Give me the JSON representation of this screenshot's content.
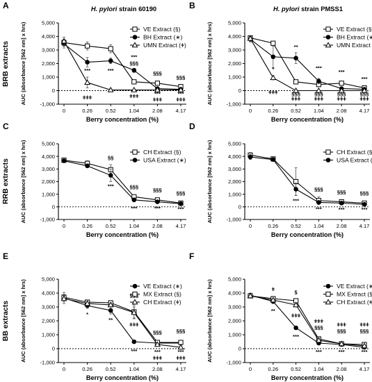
{
  "chart_data": [
    {
      "panel": "A",
      "type": "line",
      "row_label": "BRB extracts",
      "strain_label": "H. pylori",
      "strain_suffix": "strain 60190",
      "xlabel": "Berry concentration (%)",
      "ylabel": "AUC (absorbance [562 nm] x hrs)",
      "categories": [
        "0",
        "0.26",
        "0.52",
        "1.04",
        "2.08",
        "4.17"
      ],
      "ylim": [
        -1000,
        5000
      ],
      "yticks": [
        "-1,000",
        "0",
        "1,000",
        "2,000",
        "3,000",
        "4,000",
        "5,000"
      ],
      "legend_placement": "top-right",
      "series": [
        {
          "name": "VE Extract (§)",
          "marker": "square-open",
          "values": [
            3550,
            3300,
            3100,
            650,
            550,
            300
          ],
          "errors": [
            250,
            300,
            300,
            100,
            100,
            80
          ]
        },
        {
          "name": "BH Extract (∗)",
          "marker": "circle-filled",
          "values": [
            3450,
            2100,
            2200,
            1500,
            150,
            100
          ],
          "errors": [
            300,
            350,
            200,
            150,
            60,
            50
          ]
        },
        {
          "name": "UMN Extract (ǂ)",
          "marker": "triangle-open",
          "values": [
            3650,
            600,
            50,
            50,
            50,
            50
          ],
          "errors": [
            300,
            400,
            100,
            50,
            40,
            40
          ]
        }
      ],
      "annotations": [
        {
          "x": "0.26",
          "y": 1350,
          "text": "***"
        },
        {
          "x": "0.26",
          "y": -650,
          "text": "ǂǂǂ"
        },
        {
          "x": "0.52",
          "y": 1350,
          "text": "***"
        },
        {
          "x": "1.04",
          "y": 2350,
          "text": "***"
        },
        {
          "x": "1.04",
          "y": 1900,
          "text": "§§§"
        },
        {
          "x": "1.04",
          "y": -550,
          "text": "ǂǂǂ"
        },
        {
          "x": "2.08",
          "y": 1150,
          "text": "§§§"
        },
        {
          "x": "2.08",
          "y": -350,
          "text": "***"
        },
        {
          "x": "2.08",
          "y": -800,
          "text": "ǂǂǂ"
        },
        {
          "x": "4.17",
          "y": 850,
          "text": "§§§"
        },
        {
          "x": "4.17",
          "y": -350,
          "text": "***"
        },
        {
          "x": "4.17",
          "y": -800,
          "text": "ǂǂǂ"
        }
      ]
    },
    {
      "panel": "B",
      "type": "line",
      "row_label": "",
      "strain_label": "H. pylori",
      "strain_suffix": "strain PMSS1",
      "xlabel": "Berry concentration (%)",
      "ylabel": "AUC (absorbance [562 nm] x hrs)",
      "categories": [
        "0",
        "0.26",
        "0.52",
        "1.04",
        "2.08",
        "4.17"
      ],
      "ylim": [
        -1000,
        5000
      ],
      "yticks": [
        "-1,000",
        "0",
        "1,000",
        "2,000",
        "3,000",
        "4,000",
        "5,000"
      ],
      "legend_placement": "top-right",
      "series": [
        {
          "name": "VE Extract (§)",
          "marker": "square-open",
          "values": [
            3900,
            3500,
            650,
            450,
            550,
            200
          ],
          "errors": [
            150,
            150,
            150,
            150,
            100,
            80
          ]
        },
        {
          "name": "BH Extract (∗)",
          "marker": "circle-filled",
          "values": [
            3800,
            2500,
            2400,
            700,
            150,
            100
          ],
          "errors": [
            200,
            800,
            400,
            200,
            60,
            50
          ]
        },
        {
          "name": "UMN Extract (ǂ)",
          "marker": "triangle-open",
          "values": [
            3850,
            950,
            0,
            0,
            0,
            0
          ],
          "errors": [
            150,
            150,
            50,
            50,
            40,
            40
          ]
        }
      ],
      "annotations": [
        {
          "x": "0.26",
          "y": 1450,
          "text": "*"
        },
        {
          "x": "0.26",
          "y": -250,
          "text": "ǂǂǂ"
        },
        {
          "x": "0.52",
          "y": 3100,
          "text": "**"
        },
        {
          "x": "1.04",
          "y": 1550,
          "text": "***"
        },
        {
          "x": "0.52",
          "y": -350,
          "text": "§§§"
        },
        {
          "x": "0.52",
          "y": -750,
          "text": "ǂǂǂ"
        },
        {
          "x": "1.04",
          "y": -350,
          "text": "§§§"
        },
        {
          "x": "1.04",
          "y": -750,
          "text": "ǂǂǂ"
        },
        {
          "x": "2.08",
          "y": 1250,
          "text": "***"
        },
        {
          "x": "2.08",
          "y": -350,
          "text": "§§§"
        },
        {
          "x": "2.08",
          "y": -750,
          "text": "ǂǂǂ"
        },
        {
          "x": "4.17",
          "y": 750,
          "text": "***"
        },
        {
          "x": "4.17",
          "y": -350,
          "text": "§§§"
        },
        {
          "x": "4.17",
          "y": -750,
          "text": "ǂǂǂ"
        }
      ]
    },
    {
      "panel": "C",
      "type": "line",
      "row_label": "RRB extracts",
      "strain_label": "",
      "strain_suffix": "",
      "xlabel": "Berry concentration (%)",
      "ylabel": "AUC (absorbance [562 nm] x hrs)",
      "categories": [
        "0",
        "0.26",
        "0.52",
        "1.04",
        "2.08",
        "4.17"
      ],
      "ylim": [
        -1000,
        5000
      ],
      "yticks": [
        "-1,000",
        "0",
        "1,000",
        "2,000",
        "3,000",
        "4,000",
        "5,000"
      ],
      "legend_placement": "top-right",
      "series": [
        {
          "name": "CH Extract (§)",
          "marker": "square-open",
          "values": [
            3700,
            3450,
            2950,
            800,
            550,
            300
          ],
          "errors": [
            100,
            200,
            400,
            150,
            100,
            80
          ]
        },
        {
          "name": "USA Extract (∗)",
          "marker": "circle-filled",
          "values": [
            3650,
            3250,
            2500,
            550,
            400,
            250
          ],
          "errors": [
            100,
            150,
            500,
            150,
            80,
            60
          ]
        }
      ],
      "annotations": [
        {
          "x": "0.52",
          "y": 3750,
          "text": "§§"
        },
        {
          "x": "0.52",
          "y": 1500,
          "text": "***"
        },
        {
          "x": "1.04",
          "y": 1450,
          "text": "§§§"
        },
        {
          "x": "1.04",
          "y": -250,
          "text": "***"
        },
        {
          "x": "2.08",
          "y": 1200,
          "text": "§§§"
        },
        {
          "x": "2.08",
          "y": -250,
          "text": "***"
        },
        {
          "x": "4.17",
          "y": 950,
          "text": "§§§"
        },
        {
          "x": "4.17",
          "y": -300,
          "text": "***"
        }
      ]
    },
    {
      "panel": "D",
      "type": "line",
      "row_label": "",
      "strain_label": "",
      "strain_suffix": "",
      "xlabel": "Berry concentration (%)",
      "ylabel": "AUC (absorbance [562 nm] x hrs)",
      "categories": [
        "0",
        "0.26",
        "0.52",
        "1.04",
        "2.08",
        "4.17"
      ],
      "ylim": [
        -1000,
        5000
      ],
      "yticks": [
        "-1,000",
        "0",
        "1,000",
        "2,000",
        "3,000",
        "4,000",
        "5,000"
      ],
      "legend_placement": "top-right",
      "series": [
        {
          "name": "CH Extract (§)",
          "marker": "square-open",
          "values": [
            4100,
            3800,
            2000,
            500,
            400,
            300
          ],
          "errors": [
            200,
            100,
            1100,
            300,
            100,
            80
          ]
        },
        {
          "name": "USA Extract (∗)",
          "marker": "circle-filled",
          "values": [
            3950,
            3750,
            1400,
            350,
            300,
            200
          ],
          "errors": [
            200,
            100,
            500,
            150,
            80,
            60
          ]
        }
      ],
      "annotations": [
        {
          "x": "0.52",
          "y": 350,
          "text": "***"
        },
        {
          "x": "1.04",
          "y": 1250,
          "text": "§§§"
        },
        {
          "x": "1.04",
          "y": -300,
          "text": "***"
        },
        {
          "x": "2.08",
          "y": 1050,
          "text": "§§§"
        },
        {
          "x": "2.08",
          "y": -350,
          "text": "***"
        },
        {
          "x": "4.17",
          "y": 950,
          "text": "§§§"
        },
        {
          "x": "4.17",
          "y": -350,
          "text": "***"
        }
      ]
    },
    {
      "panel": "E",
      "type": "line",
      "row_label": "BB extracts",
      "strain_label": "",
      "strain_suffix": "",
      "xlabel": "Berry concentration (%)",
      "ylabel": "AUC (absorbance [562 nm] x hrs)",
      "categories": [
        "0",
        "0.26",
        "0.52",
        "1.04",
        "2.08",
        "4.17"
      ],
      "ylim": [
        -1000,
        5000
      ],
      "yticks": [
        "-1,000",
        "0",
        "1,000",
        "2,000",
        "3,000",
        "4,000",
        "5,000"
      ],
      "legend_placement": "top-right",
      "series": [
        {
          "name": "VE Extract (∗)",
          "marker": "circle-filled",
          "values": [
            3650,
            3100,
            2750,
            500,
            400,
            400
          ],
          "errors": [
            400,
            200,
            250,
            100,
            80,
            80
          ]
        },
        {
          "name": "MX Extract (§)",
          "marker": "square-open",
          "values": [
            3700,
            3350,
            3300,
            2650,
            450,
            450
          ],
          "errors": [
            200,
            150,
            150,
            500,
            150,
            100
          ]
        },
        {
          "name": "CH Extract (ǂ)",
          "marker": "triangle-open",
          "values": [
            3600,
            3250,
            3150,
            2600,
            300,
            100
          ],
          "errors": [
            200,
            150,
            150,
            400,
            100,
            80
          ]
        }
      ],
      "annotations": [
        {
          "x": "0.26",
          "y": 2350,
          "text": "*"
        },
        {
          "x": "0.52",
          "y": 1950,
          "text": "**"
        },
        {
          "x": "1.04",
          "y": 3700,
          "text": "§§§"
        },
        {
          "x": "1.04",
          "y": 1600,
          "text": "ǂǂǂ"
        },
        {
          "x": "1.04",
          "y": -300,
          "text": "***"
        },
        {
          "x": "2.08",
          "y": 1050,
          "text": "§§§"
        },
        {
          "x": "2.08",
          "y": -350,
          "text": "***"
        },
        {
          "x": "2.08",
          "y": -800,
          "text": "ǂǂǂ"
        },
        {
          "x": "4.17",
          "y": 1150,
          "text": "§§§"
        },
        {
          "x": "4.17",
          "y": -350,
          "text": "***"
        },
        {
          "x": "4.17",
          "y": -800,
          "text": "ǂǂǂ"
        }
      ]
    },
    {
      "panel": "F",
      "type": "line",
      "row_label": "",
      "strain_label": "",
      "strain_suffix": "",
      "xlabel": "Berry concentration (%)",
      "ylabel": "AUC (absorbance [562 nm] x hrs)",
      "categories": [
        "0",
        "0.26",
        "0.52",
        "1.04",
        "2.08",
        "4.17"
      ],
      "ylim": [
        -1000,
        5000
      ],
      "yticks": [
        "-1,000",
        "0",
        "1,000",
        "2,000",
        "3,000",
        "4,000",
        "5,000"
      ],
      "legend_placement": "top-right",
      "series": [
        {
          "name": "VE Extract (∗)",
          "marker": "circle-filled",
          "values": [
            3850,
            3400,
            1500,
            400,
            300,
            100
          ],
          "errors": [
            150,
            150,
            100,
            80,
            60,
            50
          ]
        },
        {
          "name": "MX Extract (§)",
          "marker": "square-open",
          "values": [
            3800,
            3600,
            3450,
            700,
            350,
            300
          ],
          "errors": [
            150,
            100,
            150,
            150,
            80,
            80
          ]
        },
        {
          "name": "CH Extract (ǂ)",
          "marker": "triangle-open",
          "values": [
            3800,
            3500,
            3150,
            600,
            350,
            200
          ],
          "errors": [
            150,
            100,
            150,
            150,
            80,
            60
          ]
        }
      ],
      "annotations": [
        {
          "x": "0.26",
          "y": 4150,
          "text": "ǂ"
        },
        {
          "x": "0.26",
          "y": 2600,
          "text": "**"
        },
        {
          "x": "0.52",
          "y": 3950,
          "text": "§"
        },
        {
          "x": "0.52",
          "y": 2250,
          "text": "ǂǂǂ"
        },
        {
          "x": "0.52",
          "y": 750,
          "text": "***"
        },
        {
          "x": "1.04",
          "y": 1850,
          "text": "ǂǂǂ"
        },
        {
          "x": "1.04",
          "y": 1400,
          "text": "§§§"
        },
        {
          "x": "1.04",
          "y": -350,
          "text": "***"
        },
        {
          "x": "2.08",
          "y": 1600,
          "text": "ǂǂǂ"
        },
        {
          "x": "2.08",
          "y": 1150,
          "text": "§§§"
        },
        {
          "x": "2.08",
          "y": -350,
          "text": "***"
        },
        {
          "x": "4.17",
          "y": 1600,
          "text": "ǂǂǂ"
        },
        {
          "x": "4.17",
          "y": 1150,
          "text": "§§§"
        },
        {
          "x": "4.17",
          "y": -350,
          "text": "***"
        }
      ]
    }
  ]
}
